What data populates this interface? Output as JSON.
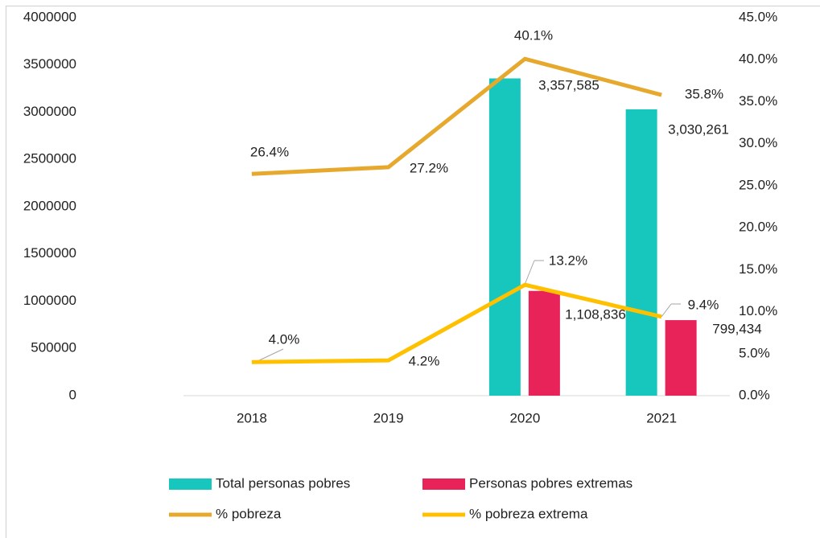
{
  "chart_data": {
    "type": "bar-line",
    "categories": [
      "2018",
      "2019",
      "2020",
      "2021"
    ],
    "ylim": [
      0,
      4000000
    ],
    "yticks": [
      0,
      500000,
      1000000,
      1500000,
      2000000,
      2500000,
      3000000,
      3500000,
      4000000
    ],
    "y2lim": [
      0,
      45
    ],
    "y2ticks": [
      {
        "value": 0,
        "label": "0.0%"
      },
      {
        "value": 5,
        "label": "5.0%"
      },
      {
        "value": 10,
        "label": "10.0%"
      },
      {
        "value": 15,
        "label": "15.0%"
      },
      {
        "value": 20,
        "label": "20.0%"
      },
      {
        "value": 25,
        "label": "25.0%"
      },
      {
        "value": 30,
        "label": "30.0%"
      },
      {
        "value": 35,
        "label": "35.0%"
      },
      {
        "value": 40,
        "label": "40.0%"
      },
      {
        "value": 45,
        "label": "45.0%"
      }
    ],
    "legend": "bottom",
    "series": [
      {
        "name": "Total personas pobres",
        "type": "bar",
        "color": "#17c7bd",
        "values": [
          null,
          null,
          3357585,
          3030261
        ],
        "value_labels": [
          null,
          null,
          "3,357,585",
          "3,030,261"
        ]
      },
      {
        "name": "Personas pobres extremas",
        "type": "bar",
        "color": "#e8235a",
        "values": [
          null,
          null,
          1108836,
          799434
        ],
        "value_labels": [
          null,
          null,
          "1,108,836",
          "799,434"
        ]
      },
      {
        "name": "% pobreza",
        "type": "line",
        "axis": "y2",
        "color": "#e6a92e",
        "values": [
          26.4,
          27.2,
          40.1,
          35.8
        ],
        "value_labels": [
          "26.4%",
          "27.2%",
          "40.1%",
          "35.8%"
        ]
      },
      {
        "name": "% pobreza extrema",
        "type": "line",
        "axis": "y2",
        "color": "#ffc000",
        "values": [
          4.0,
          4.2,
          13.2,
          9.4
        ],
        "value_labels": [
          "4.0%",
          "4.2%",
          "13.2%",
          "9.4%"
        ]
      }
    ]
  }
}
